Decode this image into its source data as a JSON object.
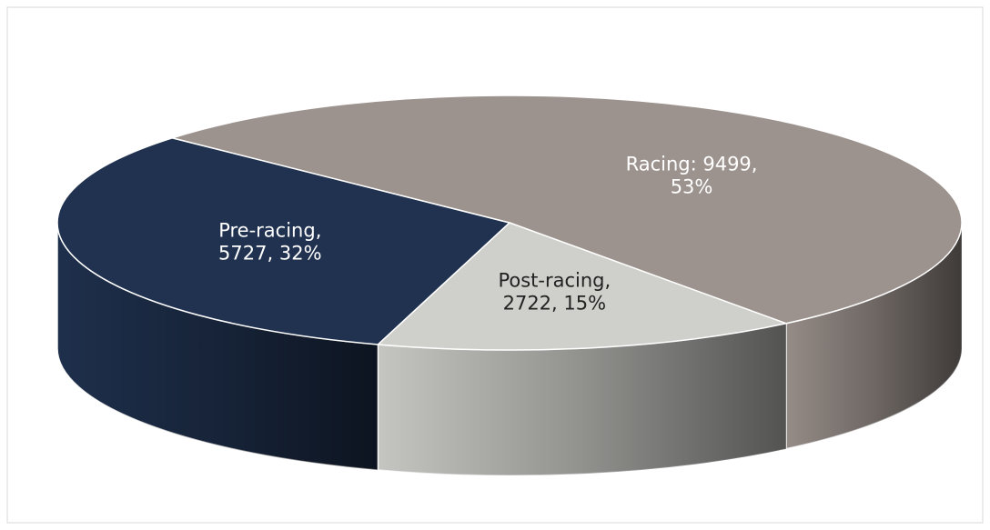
{
  "chart_data": {
    "type": "pie",
    "values": [
      5727,
      9499,
      2722
    ],
    "value_labels": [
      "Pre-racing,\n5727, 32%",
      "Racing: 9499,\n53%",
      "Post-racing,\n2722, 15%"
    ],
    "colors": [
      "#203250",
      "#9d938e",
      "#cfcfcb"
    ]
  }
}
